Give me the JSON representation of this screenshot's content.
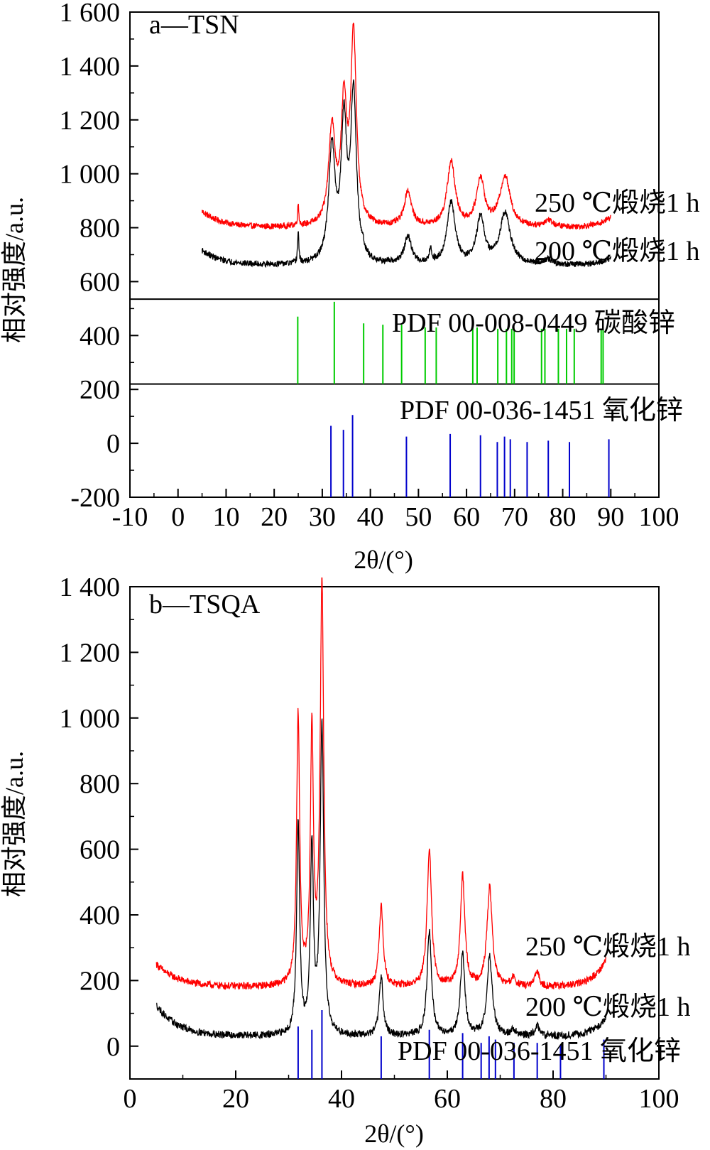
{
  "chart_data": [
    {
      "type": "line",
      "panel_label": "a—TSN",
      "xlabel": "2θ/(°)",
      "ylabel": "相对强度/a.u.",
      "xlim": [
        -10,
        100
      ],
      "ylim": [
        -200,
        1600
      ],
      "x_ticks": [
        -10,
        0,
        10,
        20,
        30,
        40,
        50,
        60,
        70,
        80,
        90,
        100
      ],
      "y_ticks": [
        -200,
        0,
        200,
        400,
        600,
        800,
        1000,
        1200,
        1400,
        1600
      ],
      "y_tick_labels": [
        "-200",
        "0",
        "200",
        "400",
        "600",
        "800",
        "1 000",
        "1 200",
        "1 400",
        "1 600"
      ],
      "series": [
        {
          "name": "250 ℃煅烧1 h",
          "color": "#ff0000",
          "x_range": [
            5,
            90
          ],
          "baseline": 800,
          "start_offset": 60,
          "end_offset": 40,
          "peaks": [
            {
              "x": 25.0,
              "h": 80,
              "w": 0.15
            },
            {
              "x": 32.0,
              "h": 360,
              "w": 0.8
            },
            {
              "x": 34.5,
              "h": 430,
              "w": 0.7
            },
            {
              "x": 36.5,
              "h": 700,
              "w": 0.7
            },
            {
              "x": 47.8,
              "h": 130,
              "w": 0.9
            },
            {
              "x": 56.8,
              "h": 240,
              "w": 1.0
            },
            {
              "x": 62.9,
              "h": 175,
              "w": 1.0
            },
            {
              "x": 68.0,
              "h": 185,
              "w": 1.3
            },
            {
              "x": 77.0,
              "h": 25,
              "w": 1.0
            }
          ]
        },
        {
          "name": "200 ℃煅烧1 h",
          "color": "#000000",
          "x_range": [
            5,
            90
          ],
          "baseline": 660,
          "start_offset": 55,
          "end_offset": 25,
          "peaks": [
            {
              "x": 25.0,
              "h": 120,
              "w": 0.15
            },
            {
              "x": 32.0,
              "h": 420,
              "w": 0.8
            },
            {
              "x": 34.5,
              "h": 500,
              "w": 0.7
            },
            {
              "x": 36.5,
              "h": 620,
              "w": 0.7
            },
            {
              "x": 38.5,
              "h": 30,
              "w": 0.2
            },
            {
              "x": 47.8,
              "h": 100,
              "w": 0.9
            },
            {
              "x": 52.5,
              "h": 50,
              "w": 0.3
            },
            {
              "x": 56.8,
              "h": 230,
              "w": 1.0
            },
            {
              "x": 62.9,
              "h": 170,
              "w": 1.0
            },
            {
              "x": 68.0,
              "h": 190,
              "w": 1.3
            },
            {
              "x": 77.0,
              "h": 20,
              "w": 1.0
            }
          ]
        }
      ],
      "references": [
        {
          "name": "PDF 00-008-0449 碳酸锌",
          "color": "#00cc00",
          "base": 220,
          "lines": [
            [
              24.9,
              470
            ],
            [
              32.5,
              525
            ],
            [
              38.6,
              445
            ],
            [
              42.6,
              440
            ],
            [
              46.5,
              440
            ],
            [
              51.4,
              430
            ],
            [
              53.7,
              430
            ],
            [
              61.3,
              430
            ],
            [
              62.2,
              430
            ],
            [
              66.5,
              425
            ],
            [
              68.3,
              425
            ],
            [
              69.4,
              425
            ],
            [
              69.9,
              425
            ],
            [
              75.6,
              425
            ],
            [
              76.3,
              425
            ],
            [
              79.1,
              425
            ],
            [
              80.8,
              425
            ],
            [
              82.4,
              425
            ],
            [
              88.0,
              425
            ],
            [
              88.4,
              425
            ]
          ]
        },
        {
          "name": "PDF 00-036-1451 氧化锌",
          "color": "#0000cc",
          "base": -200,
          "lines": [
            [
              31.8,
              65
            ],
            [
              34.4,
              50
            ],
            [
              36.3,
              105
            ],
            [
              47.5,
              25
            ],
            [
              56.6,
              35
            ],
            [
              62.9,
              30
            ],
            [
              66.4,
              5
            ],
            [
              67.9,
              25
            ],
            [
              69.1,
              15
            ],
            [
              72.6,
              5
            ],
            [
              77.0,
              10
            ],
            [
              81.4,
              5
            ],
            [
              89.6,
              15
            ]
          ]
        }
      ],
      "dividers": [
        535,
        220
      ]
    },
    {
      "type": "line",
      "panel_label": "b—TSQA",
      "xlabel": "2θ/(°)",
      "ylabel": "相对强度/a.u.",
      "xlim": [
        0,
        100
      ],
      "ylim": [
        -100,
        1400
      ],
      "x_ticks": [
        0,
        20,
        40,
        60,
        80,
        100
      ],
      "y_ticks": [
        0,
        200,
        400,
        600,
        800,
        1000,
        1200,
        1400
      ],
      "y_tick_labels": [
        "0",
        "200",
        "400",
        "600",
        "800",
        "1 000",
        "1 200",
        "1 400"
      ],
      "series": [
        {
          "name": "250 ℃煅烧1 h",
          "color": "#ff0000",
          "x_range": [
            5,
            90
          ],
          "baseline": 180,
          "start_offset": 70,
          "end_offset": 85,
          "peaks": [
            {
              "x": 31.8,
              "h": 820,
              "w": 0.35
            },
            {
              "x": 34.4,
              "h": 760,
              "w": 0.35
            },
            {
              "x": 36.3,
              "h": 1220,
              "w": 0.4
            },
            {
              "x": 47.5,
              "h": 250,
              "w": 0.45
            },
            {
              "x": 56.6,
              "h": 420,
              "w": 0.5
            },
            {
              "x": 62.9,
              "h": 335,
              "w": 0.5
            },
            {
              "x": 68.0,
              "h": 300,
              "w": 0.6
            },
            {
              "x": 72.5,
              "h": 25,
              "w": 0.5
            },
            {
              "x": 77.0,
              "h": 45,
              "w": 0.5
            }
          ]
        },
        {
          "name": "200 ℃煅烧1 h",
          "color": "#000000",
          "x_range": [
            5,
            90
          ],
          "baseline": 30,
          "start_offset": 95,
          "end_offset": 55,
          "peaks": [
            {
              "x": 31.8,
              "h": 640,
              "w": 0.35
            },
            {
              "x": 34.4,
              "h": 570,
              "w": 0.35
            },
            {
              "x": 36.3,
              "h": 940,
              "w": 0.4
            },
            {
              "x": 47.5,
              "h": 180,
              "w": 0.45
            },
            {
              "x": 56.6,
              "h": 320,
              "w": 0.5
            },
            {
              "x": 62.9,
              "h": 250,
              "w": 0.5
            },
            {
              "x": 68.0,
              "h": 240,
              "w": 0.6
            },
            {
              "x": 72.5,
              "h": 20,
              "w": 0.5
            },
            {
              "x": 77.0,
              "h": 30,
              "w": 0.5
            }
          ]
        }
      ],
      "references": [
        {
          "name": "PDF 00-036-1451 氧化锌",
          "color": "#0000cc",
          "base": -100,
          "lines": [
            [
              31.8,
              60
            ],
            [
              34.4,
              50
            ],
            [
              36.3,
              110
            ],
            [
              47.5,
              30
            ],
            [
              56.6,
              50
            ],
            [
              62.9,
              40
            ],
            [
              66.4,
              10
            ],
            [
              67.9,
              30
            ],
            [
              69.1,
              20
            ],
            [
              72.6,
              10
            ],
            [
              77.0,
              10
            ],
            [
              81.4,
              5
            ],
            [
              89.6,
              20
            ]
          ]
        }
      ]
    }
  ]
}
